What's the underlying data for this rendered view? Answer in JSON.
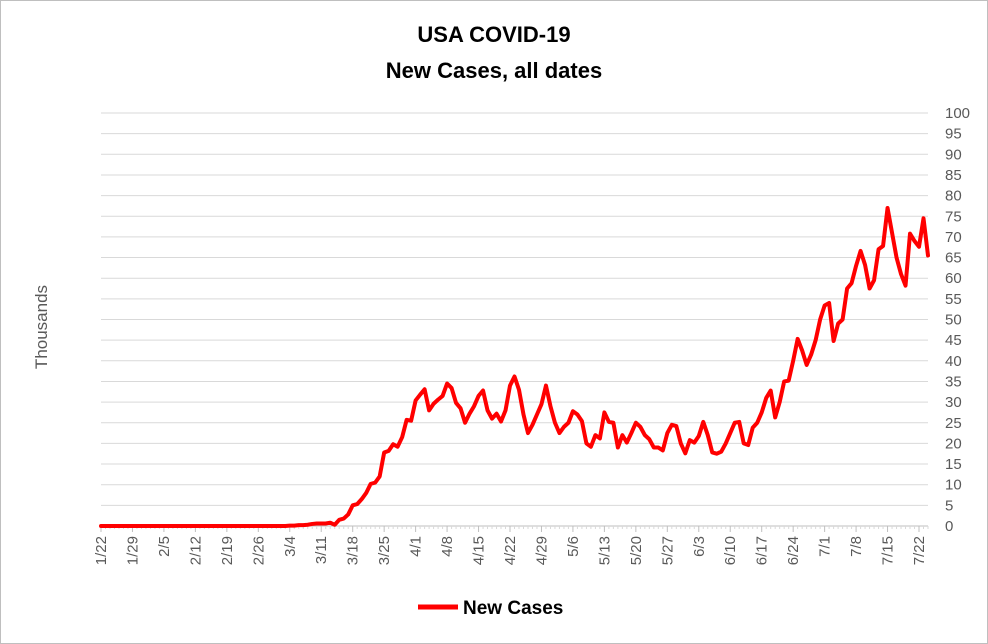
{
  "chart_data": {
    "type": "line",
    "title": "USA COVID-19",
    "subtitle": "New Cases, all dates",
    "ylabel": "Thousands",
    "xlabel": "",
    "ylim": [
      0,
      100
    ],
    "yticks": [
      0,
      5,
      10,
      15,
      20,
      25,
      30,
      35,
      40,
      45,
      50,
      55,
      60,
      65,
      70,
      75,
      80,
      85,
      90,
      95,
      100
    ],
    "xticks": [
      "1/22",
      "1/29",
      "2/5",
      "2/12",
      "2/19",
      "2/26",
      "3/4",
      "3/11",
      "3/18",
      "3/25",
      "4/1",
      "4/8",
      "4/15",
      "4/22",
      "4/29",
      "5/6",
      "5/13",
      "5/20",
      "5/27",
      "6/3",
      "6/10",
      "6/17",
      "6/24",
      "7/1",
      "7/8",
      "7/15",
      "7/22"
    ],
    "x_start": "1/22",
    "x_end": "7/26",
    "grid": true,
    "legend_position": "bottom",
    "series": [
      {
        "name": "New Cases",
        "color": "#ff0000",
        "values": [
          0,
          0,
          0,
          0,
          0,
          0,
          0,
          0,
          0,
          0,
          0,
          0,
          0,
          0,
          0,
          0,
          0,
          0,
          0,
          0,
          0,
          0,
          0,
          0,
          0,
          0,
          0,
          0,
          0,
          0,
          0,
          0,
          0,
          0,
          0,
          0,
          0,
          0,
          0,
          0,
          0,
          0,
          0.1,
          0.1,
          0.2,
          0.2,
          0.3,
          0.5,
          0.6,
          0.6,
          0.6,
          0.8,
          0.3,
          1.5,
          1.8,
          2.8,
          5.0,
          5.3,
          6.5,
          8.0,
          10.2,
          10.5,
          12.0,
          17.8,
          18.2,
          19.8,
          19.2,
          21.5,
          25.7,
          25.5,
          30.4,
          31.8,
          33.1,
          28.0,
          29.6,
          30.6,
          31.5,
          34.5,
          33.4,
          29.8,
          28.5,
          25.0,
          27.2,
          29.0,
          31.5,
          32.8,
          28.0,
          26.0,
          27.2,
          25.3,
          28.0,
          34.0,
          36.2,
          33.0,
          27.0,
          22.5,
          24.5,
          27.0,
          29.5,
          34.0,
          29.0,
          25.0,
          22.5,
          24.0,
          25.0,
          27.8,
          27.0,
          25.4,
          20.0,
          19.2,
          22.0,
          21.2,
          27.5,
          25.2,
          25.0,
          19.0,
          22.0,
          20.2,
          22.5,
          25.0,
          24.0,
          22.0,
          21.0,
          19.0,
          19.0,
          18.3,
          22.5,
          24.5,
          24.2,
          20.0,
          17.6,
          20.8,
          20.2,
          21.8,
          25.2,
          22.0,
          17.8,
          17.5,
          18.0,
          20.0,
          22.5,
          25.0,
          25.2,
          20.0,
          19.6,
          23.8,
          25.0,
          27.5,
          31.0,
          32.8,
          26.3,
          30.0,
          35.0,
          35.2,
          40.0,
          45.3,
          42.5,
          39.0,
          41.5,
          45.0,
          50.0,
          53.4,
          54.0,
          44.8,
          49.0,
          50.0,
          57.5,
          58.8,
          63.0,
          66.6,
          63.2,
          57.5,
          59.5,
          67.0,
          67.8,
          77.0,
          71.0,
          65.0,
          61.0,
          58.2,
          70.8,
          69.0,
          67.6,
          74.5,
          65.5
        ]
      }
    ]
  }
}
